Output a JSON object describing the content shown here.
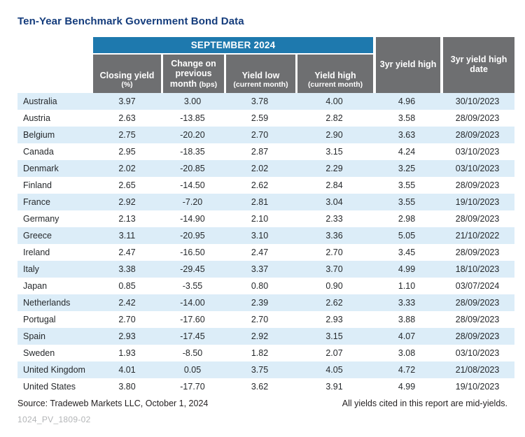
{
  "title": "Ten-Year Benchmark Government Bond Data",
  "table": {
    "period_header": "SEPTEMBER 2024",
    "columns": [
      {
        "label": "Closing yield",
        "sub": "(%)"
      },
      {
        "label": "Change on previous month",
        "sub": "(bps)"
      },
      {
        "label": "Yield low",
        "sub": "(current month)"
      },
      {
        "label": "Yield high",
        "sub": "(current month)"
      },
      {
        "label": "3yr yield high",
        "sub": ""
      },
      {
        "label": "3yr yield high date",
        "sub": ""
      }
    ],
    "rows": [
      {
        "country": "Australia",
        "closing_yield": "3.97",
        "change_bps": "3.00",
        "yield_low": "3.78",
        "yield_high": "4.00",
        "yr3_high": "4.96",
        "yr3_high_date": "30/10/2023"
      },
      {
        "country": "Austria",
        "closing_yield": "2.63",
        "change_bps": "-13.85",
        "yield_low": "2.59",
        "yield_high": "2.82",
        "yr3_high": "3.58",
        "yr3_high_date": "28/09/2023"
      },
      {
        "country": "Belgium",
        "closing_yield": "2.75",
        "change_bps": "-20.20",
        "yield_low": "2.70",
        "yield_high": "2.90",
        "yr3_high": "3.63",
        "yr3_high_date": "28/09/2023"
      },
      {
        "country": "Canada",
        "closing_yield": "2.95",
        "change_bps": "-18.35",
        "yield_low": "2.87",
        "yield_high": "3.15",
        "yr3_high": "4.24",
        "yr3_high_date": "03/10/2023"
      },
      {
        "country": "Denmark",
        "closing_yield": "2.02",
        "change_bps": "-20.85",
        "yield_low": "2.02",
        "yield_high": "2.29",
        "yr3_high": "3.25",
        "yr3_high_date": "03/10/2023"
      },
      {
        "country": "Finland",
        "closing_yield": "2.65",
        "change_bps": "-14.50",
        "yield_low": "2.62",
        "yield_high": "2.84",
        "yr3_high": "3.55",
        "yr3_high_date": "28/09/2023"
      },
      {
        "country": "France",
        "closing_yield": "2.92",
        "change_bps": "-7.20",
        "yield_low": "2.81",
        "yield_high": "3.04",
        "yr3_high": "3.55",
        "yr3_high_date": "19/10/2023"
      },
      {
        "country": "Germany",
        "closing_yield": "2.13",
        "change_bps": "-14.90",
        "yield_low": "2.10",
        "yield_high": "2.33",
        "yr3_high": "2.98",
        "yr3_high_date": "28/09/2023"
      },
      {
        "country": "Greece",
        "closing_yield": "3.11",
        "change_bps": "-20.95",
        "yield_low": "3.10",
        "yield_high": "3.36",
        "yr3_high": "5.05",
        "yr3_high_date": "21/10/2022"
      },
      {
        "country": "Ireland",
        "closing_yield": "2.47",
        "change_bps": "-16.50",
        "yield_low": "2.47",
        "yield_high": "2.70",
        "yr3_high": "3.45",
        "yr3_high_date": "28/09/2023"
      },
      {
        "country": "Italy",
        "closing_yield": "3.38",
        "change_bps": "-29.45",
        "yield_low": "3.37",
        "yield_high": "3.70",
        "yr3_high": "4.99",
        "yr3_high_date": "18/10/2023"
      },
      {
        "country": "Japan",
        "closing_yield": "0.85",
        "change_bps": "-3.55",
        "yield_low": "0.80",
        "yield_high": "0.90",
        "yr3_high": "1.10",
        "yr3_high_date": "03/07/2024"
      },
      {
        "country": "Netherlands",
        "closing_yield": "2.42",
        "change_bps": "-14.00",
        "yield_low": "2.39",
        "yield_high": "2.62",
        "yr3_high": "3.33",
        "yr3_high_date": "28/09/2023"
      },
      {
        "country": "Portugal",
        "closing_yield": "2.70",
        "change_bps": "-17.60",
        "yield_low": "2.70",
        "yield_high": "2.93",
        "yr3_high": "3.88",
        "yr3_high_date": "28/09/2023"
      },
      {
        "country": "Spain",
        "closing_yield": "2.93",
        "change_bps": "-17.45",
        "yield_low": "2.92",
        "yield_high": "3.15",
        "yr3_high": "4.07",
        "yr3_high_date": "28/09/2023"
      },
      {
        "country": "Sweden",
        "closing_yield": "1.93",
        "change_bps": "-8.50",
        "yield_low": "1.82",
        "yield_high": "2.07",
        "yr3_high": "3.08",
        "yr3_high_date": "03/10/2023"
      },
      {
        "country": "United Kingdom",
        "closing_yield": "4.01",
        "change_bps": "0.05",
        "yield_low": "3.75",
        "yield_high": "4.05",
        "yr3_high": "4.72",
        "yr3_high_date": "21/08/2023"
      },
      {
        "country": "United States",
        "closing_yield": "3.80",
        "change_bps": "-17.70",
        "yield_low": "3.62",
        "yield_high": "3.91",
        "yr3_high": "4.99",
        "yr3_high_date": "19/10/2023"
      }
    ]
  },
  "footer": {
    "source": "Source: Tradeweb Markets LLC, October 1, 2024",
    "note": "All yields cited in this report are mid-yields.",
    "document_id": "1024_PV_1809-02"
  },
  "colors": {
    "accent_blue": "#1e79ae",
    "header_gray": "#6e6f71",
    "row_stripe": "#dcedf8",
    "title_navy": "#143c7c",
    "doc_id_gray": "#b3b5b7"
  }
}
